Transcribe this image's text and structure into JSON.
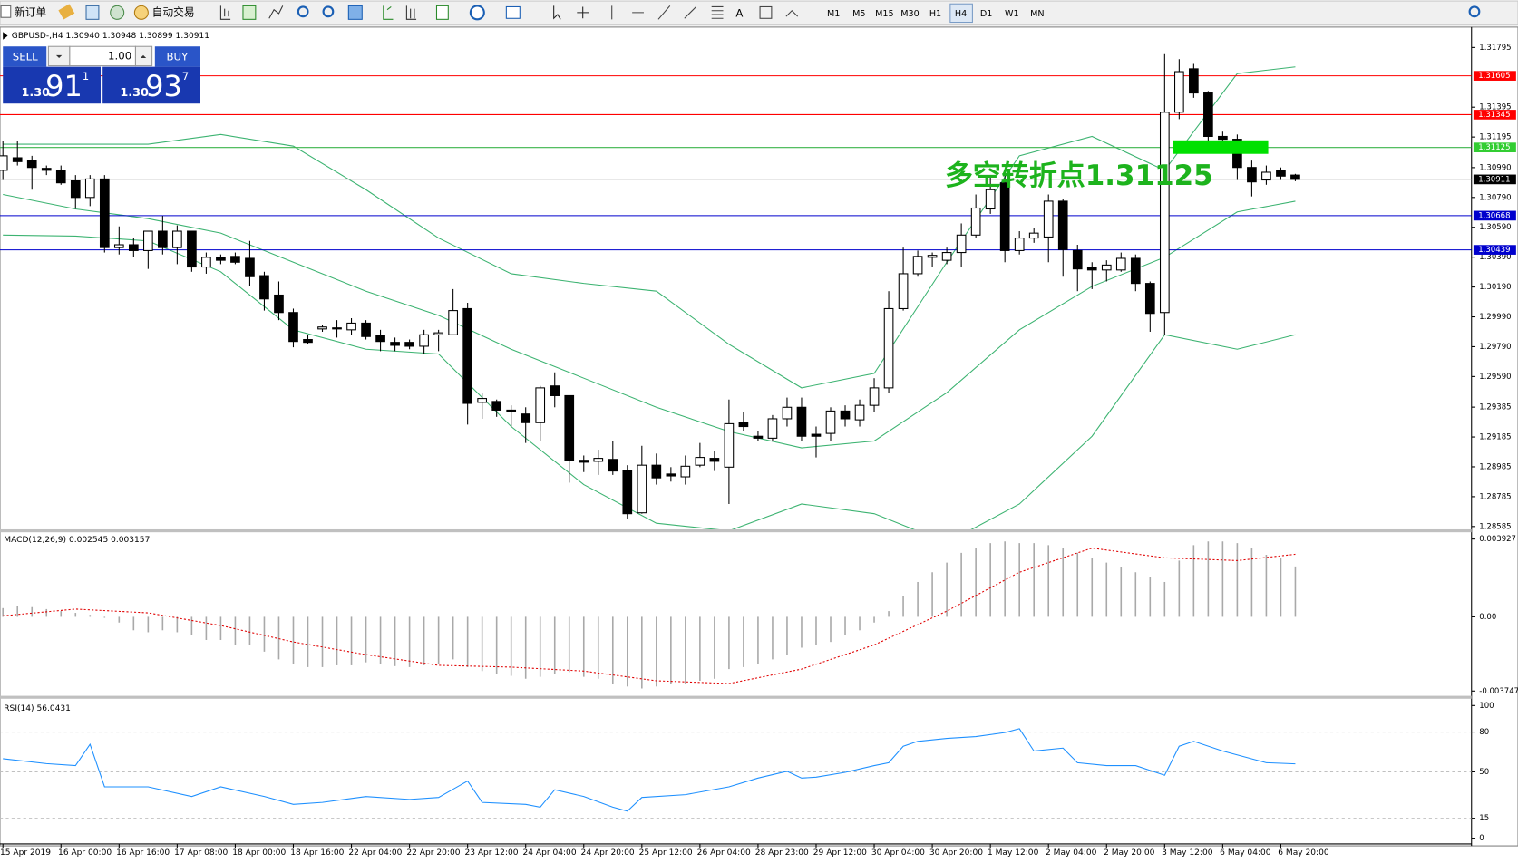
{
  "toolbar": {
    "new_order": "新订单",
    "auto_trading": "自动交易",
    "timeframes": [
      "M1",
      "M5",
      "M15",
      "M30",
      "H1",
      "H4",
      "D1",
      "W1",
      "MN"
    ],
    "active": "H4"
  },
  "trade_panel": {
    "sell": "SELL",
    "buy": "BUY",
    "lots": "1.00",
    "bid": {
      "base": "1.30",
      "pips": "91",
      "frac": "1"
    },
    "ask": {
      "base": "1.30",
      "pips": "93",
      "frac": "7"
    }
  },
  "chart_data": [
    {
      "type": "candlestick",
      "title": "GBPUSD-,H4 1.30940 1.30948 1.30899 1.30911",
      "ylim": [
        1.28566,
        1.31925
      ],
      "yticks": [
        1.31795,
        1.31395,
        1.31195,
        {
          "value": 1.3099,
          "label": "1.30990"
        },
        {
          "value": 1.3079,
          "label": "1.30790"
        },
        {
          "value": 1.3059,
          "label": "1.30590"
        },
        {
          "value": 1.3039,
          "label": "1.30390"
        },
        {
          "value": 1.3019,
          "label": "1.30190"
        },
        {
          "value": 1.2999,
          "label": "1.29990"
        },
        {
          "value": 1.2979,
          "label": "1.29790"
        },
        {
          "value": 1.2959,
          "label": "1.29590"
        },
        1.29385,
        1.29185,
        1.28985,
        1.28785,
        1.28585
      ],
      "levels": [
        {
          "value": 1.31605,
          "color": "#ff0000",
          "box": "#ff0000"
        },
        {
          "value": 1.31345,
          "color": "#ff0000",
          "box": "#ff0000"
        },
        {
          "value": 1.31125,
          "color": "#3cb44b",
          "box": "#32cd32"
        },
        {
          "value": 1.30911,
          "color": "#c0c0c0",
          "box": "#000000"
        },
        {
          "value": 1.30668,
          "color": "#0000cd",
          "box": "#0000cd"
        },
        {
          "value": 1.30439,
          "color": "#0000cd",
          "box": "#0000cd"
        }
      ],
      "annotation": "多空转折点1.31125",
      "annotation_color": "#1db31d",
      "up_color": "#ffffff",
      "down_color": "#000000",
      "band_color": "#3cb371",
      "candles": [
        [
          1.30972,
          1.31166,
          1.30907,
          1.31069
        ],
        [
          1.31056,
          1.31166,
          1.31004,
          1.3103
        ],
        [
          1.31037,
          1.31069,
          1.30842,
          1.30991
        ],
        [
          1.30985,
          1.31004,
          1.3094,
          1.30972
        ],
        [
          1.30972,
          1.31004,
          1.30875,
          1.30888
        ],
        [
          1.30901,
          1.3094,
          1.30713,
          1.3079
        ],
        [
          1.3079,
          1.3094,
          1.30732,
          1.30914
        ],
        [
          1.30914,
          1.3094,
          1.30421,
          1.30454
        ],
        [
          1.30454,
          1.30596,
          1.30408,
          1.30473
        ],
        [
          1.30473,
          1.30518,
          1.30389,
          1.30434
        ],
        [
          1.30434,
          1.30564,
          1.30311,
          1.30564
        ],
        [
          1.30564,
          1.30667,
          1.30408,
          1.30454
        ],
        [
          1.30454,
          1.30603,
          1.30343,
          1.30564
        ],
        [
          1.30564,
          1.30564,
          1.30292,
          1.30324
        ],
        [
          1.30324,
          1.30421,
          1.30279,
          1.30389
        ],
        [
          1.30389,
          1.30408,
          1.30343,
          1.30369
        ],
        [
          1.30395,
          1.30421,
          1.30343,
          1.30356
        ],
        [
          1.30382,
          1.30499,
          1.30194,
          1.30259
        ],
        [
          1.30266,
          1.30292,
          1.30032,
          1.3011
        ],
        [
          1.30136,
          1.30227,
          1.29968,
          1.30019
        ],
        [
          1.30019,
          1.30045,
          1.29786,
          1.29825
        ],
        [
          1.29838,
          1.2987,
          1.29806,
          1.29819
        ],
        [
          1.29909,
          1.29935,
          1.2989,
          1.29922
        ],
        [
          1.29916,
          1.29968,
          1.29851,
          1.29909
        ],
        [
          1.29903,
          1.29981,
          1.2987,
          1.29948
        ],
        [
          1.29948,
          1.29968,
          1.29838,
          1.29858
        ],
        [
          1.29864,
          1.29903,
          1.2976,
          1.29825
        ],
        [
          1.29819,
          1.29851,
          1.2976,
          1.29799
        ],
        [
          1.29819,
          1.29838,
          1.29773,
          1.29793
        ],
        [
          1.29793,
          1.29903,
          1.29741,
          1.2987
        ],
        [
          1.2987,
          1.29903,
          1.2976,
          1.29883
        ],
        [
          1.2987,
          1.30176,
          1.2987,
          1.30032
        ],
        [
          1.30045,
          1.30084,
          1.29268,
          1.2941
        ],
        [
          1.29417,
          1.29482,
          1.29307,
          1.29443
        ],
        [
          1.29423,
          1.29436,
          1.2932,
          1.29365
        ],
        [
          1.29365,
          1.29397,
          1.29255,
          1.29359
        ],
        [
          1.29339,
          1.29384,
          1.29145,
          1.29281
        ],
        [
          1.29281,
          1.29527,
          1.29158,
          1.29514
        ],
        [
          1.29527,
          1.29618,
          1.29384,
          1.29462
        ],
        [
          1.29462,
          1.29462,
          1.28879,
          1.29029
        ],
        [
          1.29029,
          1.29061,
          1.2895,
          1.29016
        ],
        [
          1.29022,
          1.291,
          1.28931,
          1.29042
        ],
        [
          1.29035,
          1.29158,
          1.28931,
          1.28957
        ],
        [
          1.28963,
          1.28996,
          1.28639,
          1.28671
        ],
        [
          1.28677,
          1.29126,
          1.28671,
          1.28996
        ],
        [
          1.28996,
          1.29074,
          1.28866,
          1.28911
        ],
        [
          1.28937,
          1.28983,
          1.28886,
          1.28924
        ],
        [
          1.28918,
          1.29061,
          1.28866,
          1.28989
        ],
        [
          1.28996,
          1.29145,
          1.28983,
          1.29048
        ],
        [
          1.29042,
          1.29094,
          1.28957,
          1.29022
        ],
        [
          1.28983,
          1.29436,
          1.28736,
          1.29274
        ],
        [
          1.29281,
          1.29352,
          1.29222,
          1.29255
        ],
        [
          1.2919,
          1.29222,
          1.29158,
          1.29177
        ],
        [
          1.29177,
          1.29332,
          1.29158,
          1.29307
        ],
        [
          1.29307,
          1.29449,
          1.29255,
          1.29384
        ],
        [
          1.29384,
          1.29449,
          1.29158,
          1.2919
        ],
        [
          1.29203,
          1.29255,
          1.29048,
          1.2919
        ],
        [
          1.29209,
          1.29384,
          1.29158,
          1.29359
        ],
        [
          1.29359,
          1.29397,
          1.29255,
          1.29307
        ],
        [
          1.293,
          1.29436,
          1.29255,
          1.29397
        ],
        [
          1.29397,
          1.29579,
          1.29352,
          1.29514
        ],
        [
          1.29514,
          1.30162,
          1.29482,
          1.30045
        ],
        [
          1.30045,
          1.30454,
          1.30032,
          1.30279
        ],
        [
          1.30279,
          1.30434,
          1.30259,
          1.30395
        ],
        [
          1.30389,
          1.30421,
          1.30324,
          1.30402
        ],
        [
          1.30369,
          1.30454,
          1.30343,
          1.30421
        ],
        [
          1.30421,
          1.30616,
          1.30324,
          1.30538
        ],
        [
          1.30538,
          1.3081,
          1.30518,
          1.30719
        ],
        [
          1.30713,
          1.3094,
          1.3068,
          1.30842
        ],
        [
          1.30888,
          1.3094,
          1.30356,
          1.30434
        ],
        [
          1.30434,
          1.30564,
          1.30408,
          1.30518
        ],
        [
          1.30518,
          1.30583,
          1.30486,
          1.30551
        ],
        [
          1.30525,
          1.3081,
          1.30356,
          1.30765
        ],
        [
          1.30765,
          1.30778,
          1.30259,
          1.30441
        ],
        [
          1.30434,
          1.30473,
          1.30162,
          1.30311
        ],
        [
          1.30324,
          1.30356,
          1.30176,
          1.30304
        ],
        [
          1.30304,
          1.30369,
          1.30227,
          1.30337
        ],
        [
          1.30304,
          1.30421,
          1.30292,
          1.30382
        ],
        [
          1.30382,
          1.30408,
          1.30162,
          1.30214
        ],
        [
          1.30214,
          1.30227,
          1.2989,
          1.30013
        ],
        [
          1.30019,
          1.3175,
          1.2987,
          1.31361
        ],
        [
          1.31361,
          1.31717,
          1.31315,
          1.31633
        ],
        [
          1.31652,
          1.31685,
          1.31458,
          1.3149
        ],
        [
          1.3149,
          1.31503,
          1.31166,
          1.31199
        ],
        [
          1.31199,
          1.31231,
          1.31134,
          1.3118
        ],
        [
          1.3118,
          1.31212,
          1.30907,
          1.30991
        ],
        [
          1.30991,
          1.31037,
          1.30797,
          1.30894
        ],
        [
          1.30907,
          1.31004,
          1.30875,
          1.30959
        ],
        [
          1.30972,
          1.30991,
          1.30907,
          1.30933
        ],
        [
          1.3094,
          1.30948,
          1.30899,
          1.30911
        ]
      ],
      "bands": {
        "x": [
          0,
          5,
          10,
          15,
          20,
          25,
          30,
          35,
          40,
          45,
          50,
          55,
          60,
          65,
          70,
          75,
          80,
          85,
          89
        ],
        "upper": [
          1.31147,
          1.31147,
          1.31147,
          1.31212,
          1.31134,
          1.30842,
          1.30518,
          1.30279,
          1.30214,
          1.30162,
          1.29806,
          1.29514,
          1.29611,
          1.30356,
          1.31069,
          1.31199,
          1.30972,
          1.3162,
          1.31665
        ],
        "middle": [
          1.3081,
          1.30713,
          1.30648,
          1.30551,
          1.30356,
          1.30162,
          1.3,
          1.29773,
          1.29579,
          1.29384,
          1.29222,
          1.29112,
          1.29158,
          1.29482,
          1.29903,
          1.30194,
          1.30389,
          1.30693,
          1.30765
        ],
        "lower": [
          1.30538,
          1.30531,
          1.30499,
          1.30292,
          1.29903,
          1.29773,
          1.29741,
          1.29255,
          1.28866,
          1.28607,
          1.28556,
          1.28736,
          1.28671,
          1.28477,
          1.28736,
          1.2919,
          1.2987,
          1.29773,
          1.2987
        ]
      }
    },
    {
      "type": "macd",
      "title": "MACD(12,26,9) 0.002545 0.003157",
      "ylim": [
        -0.00399,
        0.00422
      ],
      "yticks": [
        0.003927,
        {
          "value": 0,
          "label": "0.00"
        },
        -0.003747
      ],
      "hist_color": "#a9a9a9",
      "signal_color": "#e00000",
      "values": [
        0.00044,
        0.00054,
        0.00049,
        0.00039,
        0.00029,
        0.0002,
        0.0001,
        -5e-05,
        -0.00029,
        -0.00068,
        -0.00078,
        -0.00068,
        -0.00078,
        -0.00093,
        -0.00117,
        -0.00117,
        -0.00142,
        -0.00142,
        -0.00176,
        -0.00215,
        -0.0024,
        -0.00254,
        -0.00254,
        -0.00245,
        -0.00245,
        -0.0023,
        -0.0024,
        -0.00249,
        -0.00254,
        -0.00245,
        -0.0024,
        -0.00215,
        -0.00254,
        -0.00274,
        -0.00289,
        -0.00298,
        -0.00313,
        -0.00303,
        -0.00289,
        -0.00279,
        -0.00303,
        -0.00313,
        -0.00337,
        -0.00352,
        -0.00362,
        -0.00352,
        -0.00337,
        -0.00337,
        -0.00323,
        -0.00313,
        -0.00264,
        -0.00254,
        -0.0024,
        -0.00215,
        -0.00191,
        -0.00156,
        -0.00142,
        -0.00127,
        -0.00093,
        -0.00068,
        -0.00029,
        0.00029,
        0.00103,
        0.00176,
        0.00225,
        0.00274,
        0.00323,
        0.00347,
        0.00372,
        0.00381,
        0.00372,
        0.00372,
        0.00362,
        0.00347,
        0.00323,
        0.00298,
        0.00274,
        0.00249,
        0.00225,
        0.002,
        0.00176,
        0.00284,
        0.00362,
        0.00381,
        0.00381,
        0.00372,
        0.00347,
        0.00313,
        0.00298,
        0.002545
      ],
      "signal": {
        "x": [
          0,
          5,
          10,
          15,
          20,
          25,
          30,
          35,
          40,
          45,
          50,
          55,
          60,
          65,
          70,
          75,
          80,
          85,
          89
        ],
        "values": [
          5e-05,
          0.00039,
          0.0002,
          -0.00044,
          -0.00127,
          -0.00191,
          -0.00245,
          -0.00254,
          -0.00274,
          -0.00323,
          -0.00337,
          -0.00264,
          -0.00142,
          0.00029,
          0.00225,
          0.00347,
          0.00298,
          0.00284,
          0.003157
        ]
      }
    },
    {
      "type": "rsi",
      "title": "RSI(14) 56.0431",
      "ylim": [
        -3.6,
        104.4
      ],
      "yticks": [
        100,
        80,
        50,
        15,
        0
      ],
      "color": "#1e90ff",
      "x": [
        0,
        3,
        5,
        6,
        7,
        10,
        13,
        15,
        18,
        20,
        22,
        25,
        28,
        30,
        32,
        33,
        36,
        37,
        38,
        40,
        42,
        43,
        44,
        47,
        50,
        52,
        54,
        55,
        56,
        58,
        60,
        61,
        62,
        63,
        65,
        67,
        69,
        70,
        71,
        73,
        74,
        76,
        78,
        79,
        80,
        81,
        82,
        84,
        87,
        89
      ],
      "values": [
        59.9,
        56.2,
        54.7,
        70.8,
        38.7,
        38.7,
        31.4,
        38.7,
        31.4,
        25.5,
        27,
        31.4,
        29.2,
        30.7,
        43.1,
        27,
        25.5,
        23.4,
        36.5,
        31.4,
        23.4,
        20.4,
        30.7,
        32.8,
        38.7,
        45.3,
        50.4,
        45.3,
        46,
        49.6,
        54.7,
        56.9,
        69.3,
        73,
        75.2,
        76.6,
        79.6,
        82.5,
        65.7,
        67.9,
        56.9,
        54.7,
        54.7,
        51.1,
        47.4,
        69.3,
        73,
        65.7,
        56.9,
        56.0431
      ],
      "x_tick_labels": [
        "15 Apr 2019",
        "16 Apr 00:00",
        "16 Apr 16:00",
        "17 Apr 08:00",
        "18 Apr 00:00",
        "18 Apr 16:00",
        "22 Apr 04:00",
        "22 Apr 20:00",
        "23 Apr 12:00",
        "24 Apr 04:00",
        "24 Apr 20:00",
        "25 Apr 12:00",
        "26 Apr 04:00",
        "28 Apr 23:00",
        "29 Apr 12:00",
        "30 Apr 04:00",
        "30 Apr 20:00",
        "1 May 12:00",
        "2 May 04:00",
        "2 May 20:00",
        "3 May 12:00",
        "6 May 04:00",
        "6 May 20:00"
      ]
    }
  ]
}
